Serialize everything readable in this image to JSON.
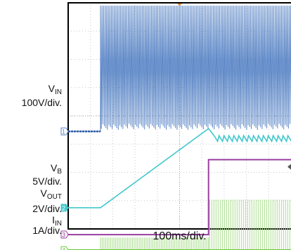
{
  "chart_data": {
    "type": "line",
    "xlabel": "100ms/div.",
    "grid": true,
    "colors": {
      "vin": "#5b86c6",
      "vb": "#43c8cc",
      "vout": "#9a3f9f",
      "iin": "#6cc63b",
      "iin_ripple": "#a9dd8c"
    },
    "channels": [
      {
        "id": "vin",
        "number": "1",
        "name_main": "V",
        "name_sub": "IN",
        "scale": "100V/div."
      },
      {
        "id": "vb",
        "number": "2",
        "name_main": "V",
        "name_sub": "B",
        "scale": "5V/div."
      },
      {
        "id": "vout",
        "number": "3",
        "name_main": "V",
        "name_sub": "OUT",
        "scale": "2V/div."
      },
      {
        "id": "iin",
        "number": "4",
        "name_main": "I",
        "name_sub": "IN",
        "scale": "1A/div."
      }
    ],
    "x_divisions": 10,
    "y_divisions": 8,
    "series": [
      {
        "channel": "vin",
        "units": "div",
        "x": [
          0,
          1.45,
          1.45,
          6.3,
          10
        ],
        "y": [
          3.45,
          3.45,
          7.9,
          7.9,
          7.9
        ],
        "note": "burst 1.45-10 div"
      },
      {
        "channel": "vb",
        "units": "div",
        "x": [
          0,
          1.45,
          6.3,
          6.55,
          10
        ],
        "y": [
          0.75,
          0.75,
          3.55,
          3.3,
          3.2
        ]
      },
      {
        "channel": "vout",
        "units": "div",
        "x": [
          0,
          6.3,
          6.3,
          10
        ],
        "y": [
          -0.2,
          -0.2,
          2.45,
          2.45
        ]
      },
      {
        "channel": "iin",
        "units": "div",
        "x": [
          0,
          10
        ],
        "y": [
          -0.75,
          -0.75
        ]
      }
    ]
  }
}
